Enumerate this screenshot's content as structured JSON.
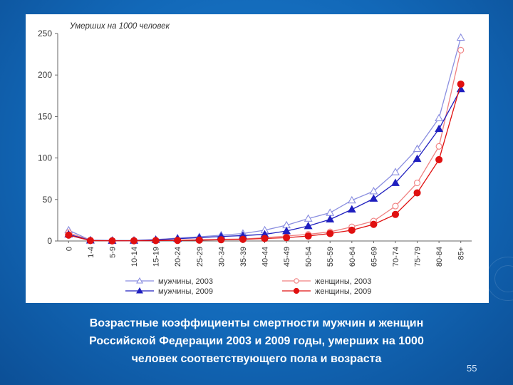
{
  "slide": {
    "caption_lines": [
      "Возрастные коэффициенты смертности мужчин и женщин",
      "Российской Федерации 2003 и 2009 годы, умерших на 1000",
      "человек соответствующего пола и возраста"
    ],
    "page_number": "55"
  },
  "chart_data": {
    "type": "line",
    "unit_label": "Умерших на 1000 человек",
    "categories": [
      "0",
      "1-4",
      "5-9",
      "10-14",
      "15-19",
      "20-24",
      "25-29",
      "30-34",
      "35-39",
      "40-44",
      "45-49",
      "50-54",
      "55-59",
      "60-64",
      "65-69",
      "70-74",
      "75-79",
      "80-84",
      "85+"
    ],
    "ylim": [
      0,
      250
    ],
    "yticks": [
      0,
      50,
      100,
      150,
      200,
      250
    ],
    "grid": false,
    "legend_position": "bottom",
    "series": [
      {
        "name": "мужчины, 2003",
        "color": "#8a8ee0",
        "marker": "triangle-open",
        "values": [
          13,
          1,
          0.5,
          0.6,
          1.7,
          3.5,
          5,
          7,
          9,
          13,
          19,
          27,
          34,
          49,
          60,
          83,
          111,
          148,
          245
        ]
      },
      {
        "name": "женщины, 2003",
        "color": "#f08080",
        "marker": "circle-open",
        "values": [
          10,
          0.8,
          0.3,
          0.3,
          0.6,
          1,
          1.5,
          2,
          2.5,
          4,
          6,
          8,
          11,
          17,
          24,
          42,
          70,
          114,
          230
        ]
      },
      {
        "name": "мужчины, 2009",
        "color": "#1f1fbf",
        "marker": "triangle-filled",
        "values": [
          8,
          0.7,
          0.4,
          0.5,
          1.4,
          2.8,
          4,
          5.5,
          6.5,
          8,
          12,
          18,
          26,
          38,
          51,
          70,
          99,
          135,
          183
        ]
      },
      {
        "name": "женщины, 2009",
        "color": "#e01010",
        "marker": "circle-filled",
        "values": [
          7,
          0.5,
          0.2,
          0.3,
          0.5,
          0.7,
          1,
          1.5,
          2,
          3,
          4,
          6,
          9,
          13,
          20,
          32,
          58,
          98,
          189
        ]
      }
    ]
  }
}
